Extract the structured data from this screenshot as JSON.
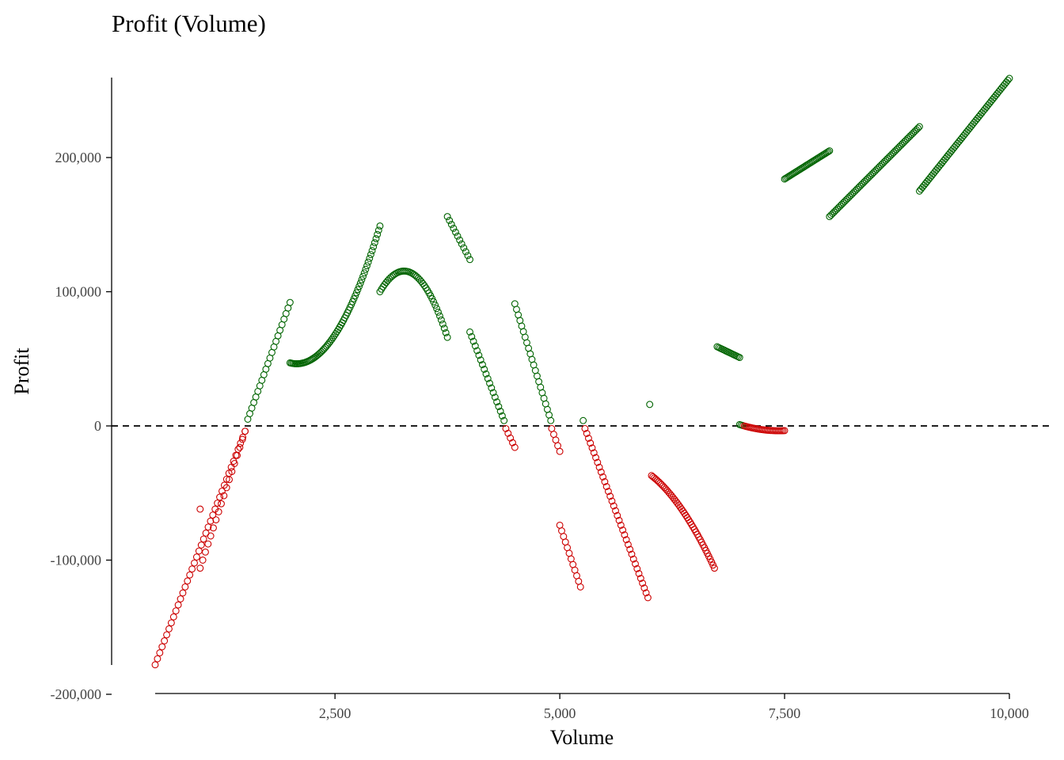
{
  "chart_data": {
    "type": "scatter",
    "title": "Profit (Volume)",
    "xlabel": "Volume",
    "ylabel": "Profit",
    "xlim": [
      500,
      10000
    ],
    "ylim": [
      -200000,
      260000
    ],
    "x_ticks": [
      2500,
      5000,
      7500,
      10000
    ],
    "x_tick_labels": [
      "2,500",
      "5,000",
      "7,500",
      "10,000"
    ],
    "y_ticks": [
      -200000,
      -100000,
      0,
      100000,
      200000
    ],
    "y_tick_labels": [
      "-200,000",
      "-100,000",
      "0",
      "100,000",
      "200,000"
    ],
    "reference_line": {
      "y": 0,
      "style": "dashed"
    },
    "colors": {
      "positive": "#006400",
      "negative": "#CC0000"
    },
    "grid": false,
    "legend": "none",
    "segments": [
      {
        "x": [
          500,
          1500
        ],
        "y": [
          -178000,
          -4000
        ],
        "n": 40,
        "curve": 0
      },
      {
        "x": [
          1000,
          1000
        ],
        "y": [
          -62000,
          -62000
        ],
        "n": 1,
        "curve": 0
      },
      {
        "x": [
          1000,
          1500
        ],
        "y": [
          -106000,
          -4000
        ],
        "n": 18,
        "curve": 0
      },
      {
        "x": [
          1530,
          2000
        ],
        "y": [
          5000,
          92000
        ],
        "n": 22,
        "curve": 0
      },
      {
        "x": [
          2000,
          3000
        ],
        "y": [
          47000,
          149000
        ],
        "n": 70,
        "curve": -30000
      },
      {
        "x": [
          3000,
          3750
        ],
        "y": [
          100000,
          66000
        ],
        "n": 45,
        "curve": 30000
      },
      {
        "x": [
          3750,
          4000
        ],
        "y": [
          156000,
          124000
        ],
        "n": 12,
        "curve": 0
      },
      {
        "x": [
          4000,
          4380
        ],
        "y": [
          70000,
          4000
        ],
        "n": 20,
        "curve": 0
      },
      {
        "x": [
          4400,
          4500
        ],
        "y": [
          -2000,
          -16000
        ],
        "n": 5,
        "curve": 0
      },
      {
        "x": [
          4500,
          4900
        ],
        "y": [
          91000,
          4000
        ],
        "n": 22,
        "curve": 0
      },
      {
        "x": [
          4910,
          5000
        ],
        "y": [
          -2000,
          -19000
        ],
        "n": 5,
        "curve": 0
      },
      {
        "x": [
          5000,
          5230
        ],
        "y": [
          -74000,
          -120000
        ],
        "n": 12,
        "curve": 0
      },
      {
        "x": [
          5260,
          5260
        ],
        "y": [
          4000,
          4000
        ],
        "n": 1,
        "curve": 0
      },
      {
        "x": [
          5280,
          5980
        ],
        "y": [
          -2000,
          -128000
        ],
        "n": 36,
        "curve": 0
      },
      {
        "x": [
          6000,
          6000
        ],
        "y": [
          16000,
          16000
        ],
        "n": 1,
        "curve": 0
      },
      {
        "x": [
          6020,
          6720
        ],
        "y": [
          -37000,
          -106000
        ],
        "n": 45,
        "curve": 8000
      },
      {
        "x": [
          6750,
          7000
        ],
        "y": [
          59000,
          51000
        ],
        "n": 16,
        "curve": 0
      },
      {
        "x": [
          7000,
          7500
        ],
        "y": [
          1000,
          -3500
        ],
        "n": 30,
        "curve": -1500
      },
      {
        "x": [
          7500,
          8000
        ],
        "y": [
          184000,
          205000
        ],
        "n": 35,
        "curve": 0
      },
      {
        "x": [
          8000,
          9000
        ],
        "y": [
          156000,
          223000
        ],
        "n": 60,
        "curve": 0
      },
      {
        "x": [
          9000,
          10000
        ],
        "y": [
          175000,
          259000
        ],
        "n": 60,
        "curve": 0
      }
    ]
  }
}
